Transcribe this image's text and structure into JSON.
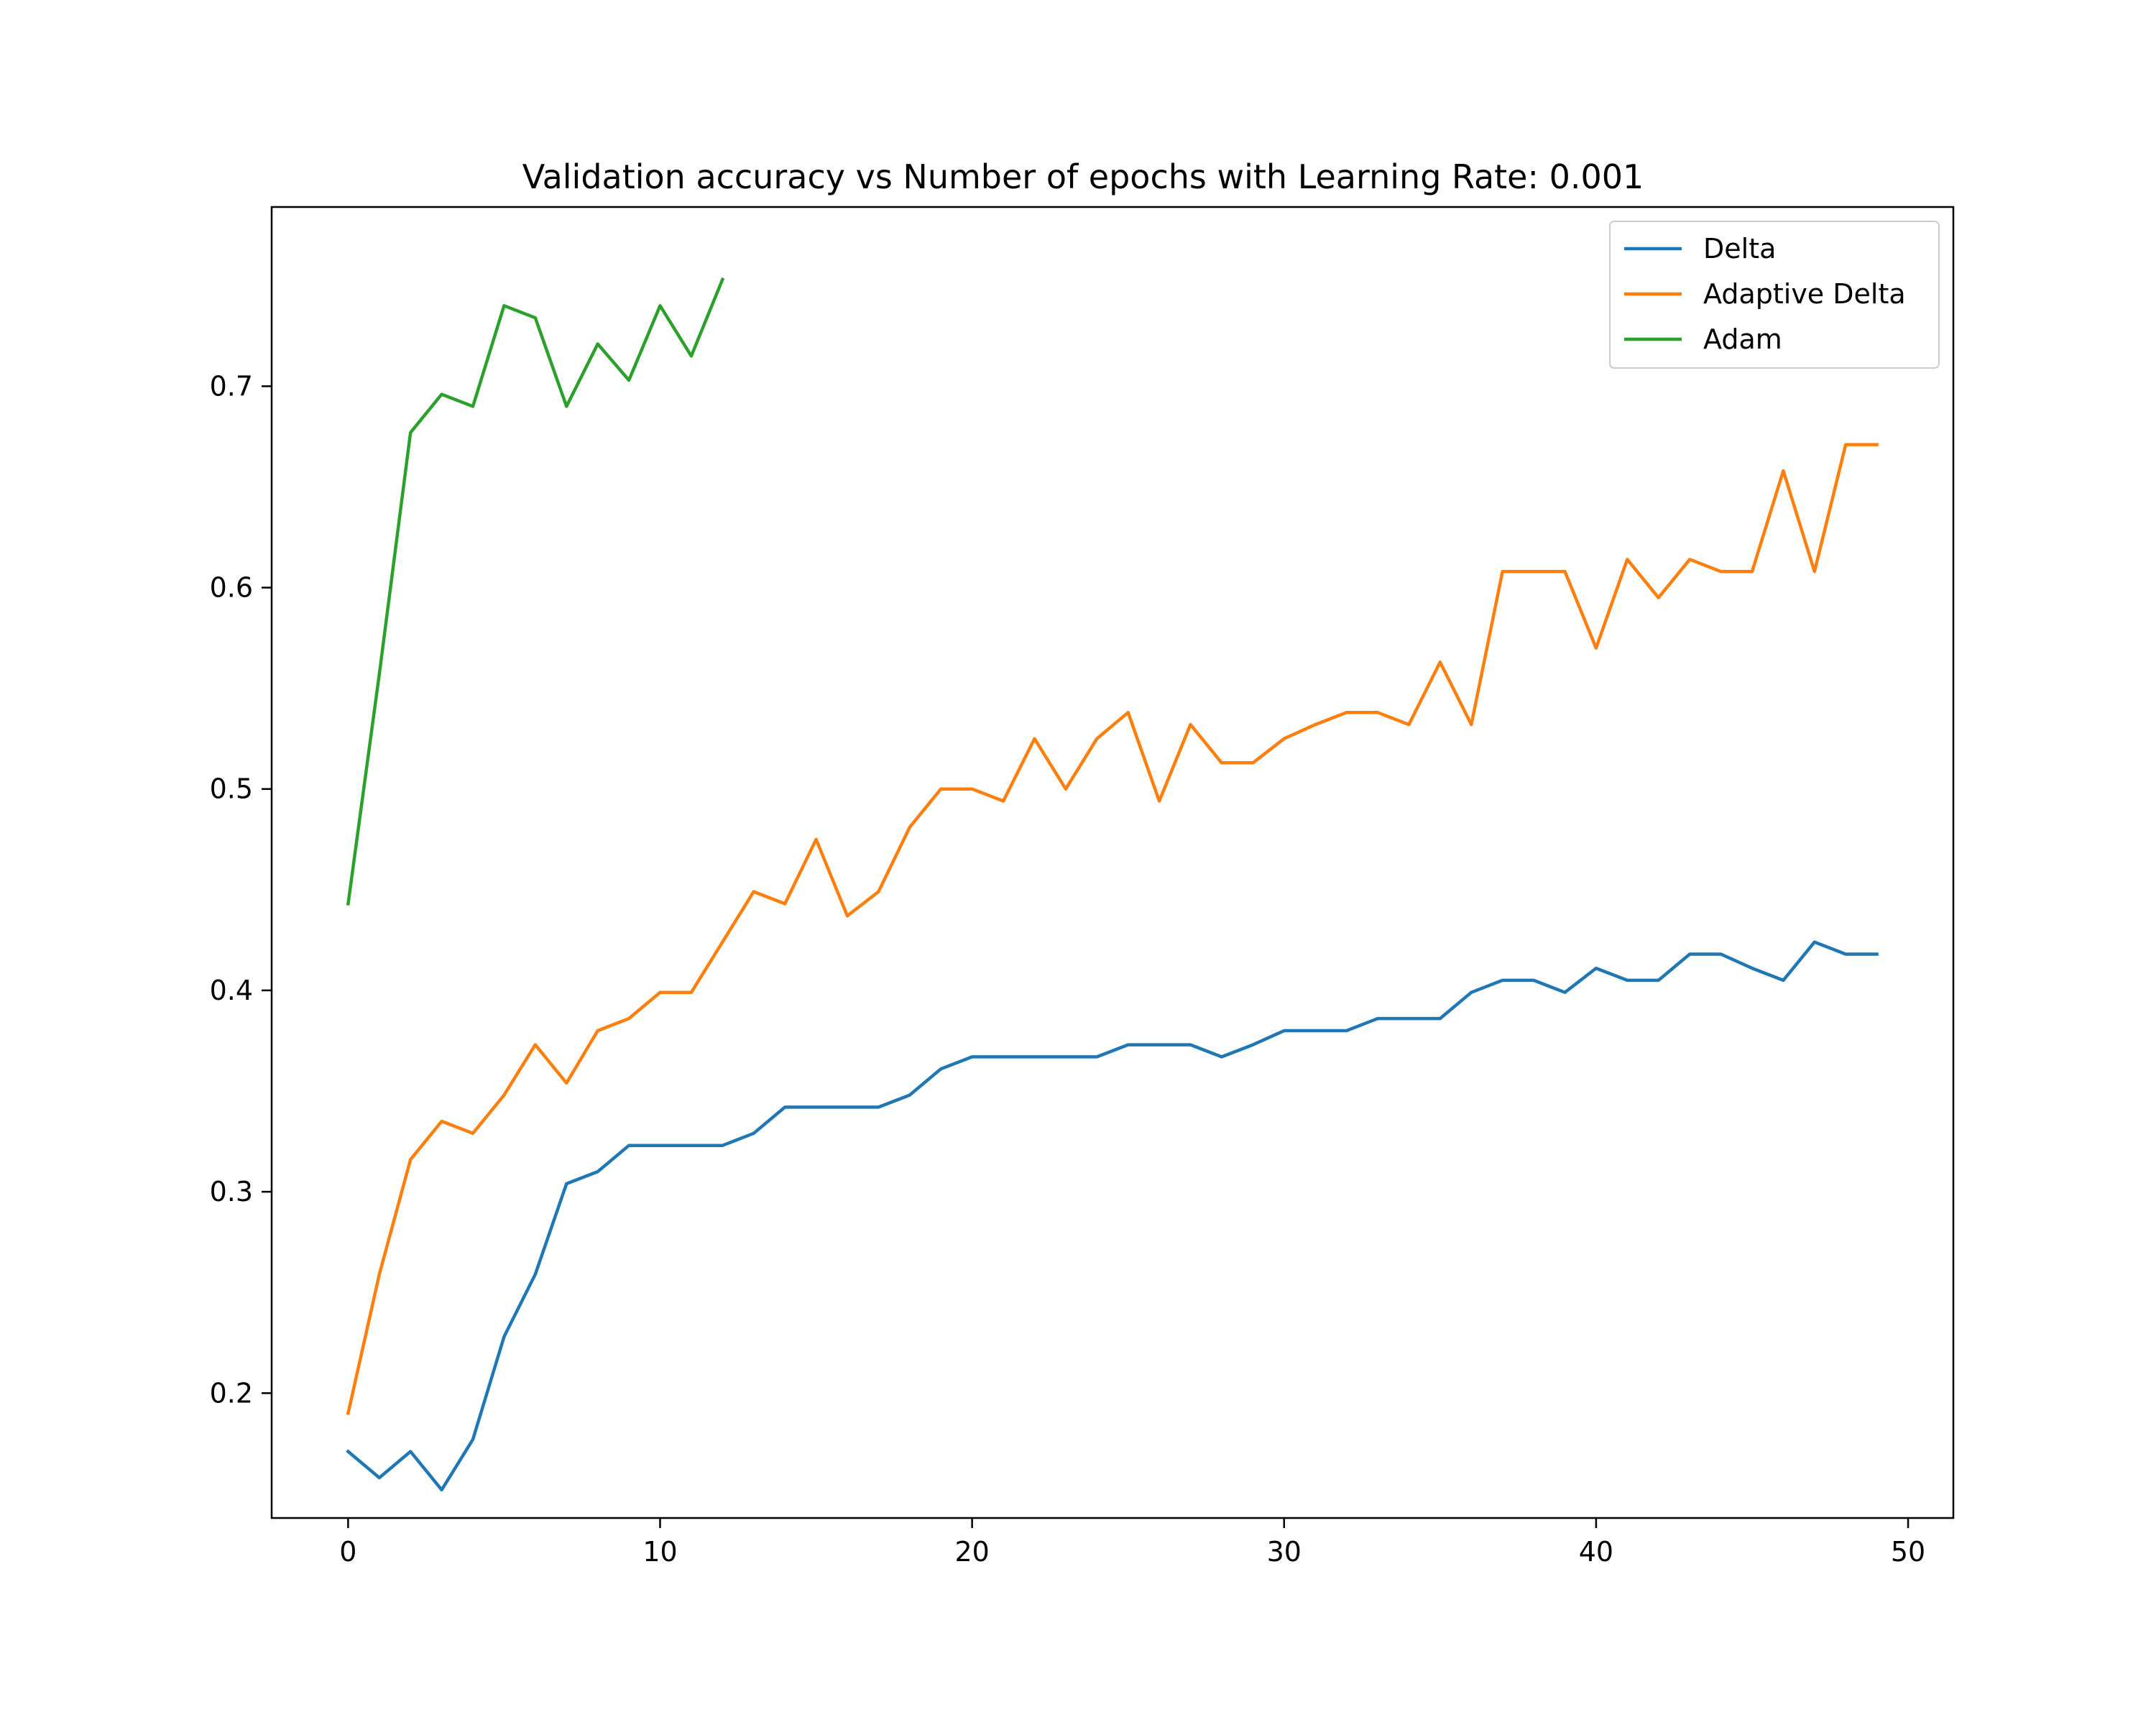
{
  "chart_data": {
    "type": "line",
    "title": "Validation accuracy vs Number of epochs with Learning Rate: 0.001",
    "xlabel": "",
    "ylabel": "",
    "xlim": [
      -2.45,
      51.45
    ],
    "ylim": [
      0.138,
      0.789
    ],
    "xticks": [
      0,
      10,
      20,
      30,
      40,
      50
    ],
    "yticks": [
      0.2,
      0.3,
      0.4,
      0.5,
      0.6,
      0.7
    ],
    "xtick_labels": [
      "0",
      "10",
      "20",
      "30",
      "40",
      "50"
    ],
    "ytick_labels": [
      "0.2",
      "0.3",
      "0.4",
      "0.5",
      "0.6",
      "0.7"
    ],
    "grid": false,
    "legend_position": "top-right",
    "series": [
      {
        "name": "Delta",
        "color": "#1f77b4",
        "x": [
          0,
          1,
          2,
          3,
          4,
          5,
          6,
          7,
          8,
          9,
          10,
          11,
          12,
          13,
          14,
          15,
          16,
          17,
          18,
          19,
          20,
          21,
          22,
          23,
          24,
          25,
          26,
          27,
          28,
          29,
          30,
          31,
          32,
          33,
          34,
          35,
          36,
          37,
          38,
          39,
          40,
          41,
          42,
          43,
          44,
          45,
          46,
          47,
          48,
          49
        ],
        "values": [
          0.171,
          0.158,
          0.171,
          0.152,
          0.177,
          0.228,
          0.259,
          0.304,
          0.31,
          0.323,
          0.323,
          0.323,
          0.323,
          0.329,
          0.342,
          0.342,
          0.342,
          0.342,
          0.348,
          0.361,
          0.367,
          0.367,
          0.367,
          0.367,
          0.367,
          0.373,
          0.373,
          0.373,
          0.367,
          0.373,
          0.38,
          0.38,
          0.38,
          0.386,
          0.386,
          0.386,
          0.399,
          0.405,
          0.405,
          0.399,
          0.411,
          0.405,
          0.405,
          0.418,
          0.418,
          0.411,
          0.405,
          0.424,
          0.418,
          0.418
        ]
      },
      {
        "name": "Adaptive Delta",
        "color": "#ff7f0e",
        "x": [
          0,
          1,
          2,
          3,
          4,
          5,
          6,
          7,
          8,
          9,
          10,
          11,
          12,
          13,
          14,
          15,
          16,
          17,
          18,
          19,
          20,
          21,
          22,
          23,
          24,
          25,
          26,
          27,
          28,
          29,
          30,
          31,
          32,
          33,
          34,
          35,
          36,
          37,
          38,
          39,
          40,
          41,
          42,
          43,
          44,
          45,
          46,
          47,
          48,
          49
        ],
        "values": [
          0.19,
          0.259,
          0.316,
          0.335,
          0.329,
          0.348,
          0.373,
          0.354,
          0.38,
          0.386,
          0.399,
          0.399,
          0.424,
          0.449,
          0.443,
          0.475,
          0.437,
          0.449,
          0.481,
          0.5,
          0.5,
          0.494,
          0.525,
          0.5,
          0.525,
          0.538,
          0.494,
          0.532,
          0.513,
          0.513,
          0.525,
          0.532,
          0.538,
          0.538,
          0.532,
          0.563,
          0.532,
          0.608,
          0.608,
          0.608,
          0.57,
          0.614,
          0.595,
          0.614,
          0.608,
          0.608,
          0.658,
          0.608,
          0.671,
          0.671
        ]
      },
      {
        "name": "Adam",
        "color": "#2ca02c",
        "x": [
          0,
          1,
          2,
          3,
          4,
          5,
          6,
          7,
          8,
          9,
          10,
          11,
          12
        ],
        "values": [
          0.443,
          0.557,
          0.677,
          0.696,
          0.69,
          0.74,
          0.734,
          0.69,
          0.721,
          0.703,
          0.74,
          0.715,
          0.753
        ]
      }
    ]
  }
}
